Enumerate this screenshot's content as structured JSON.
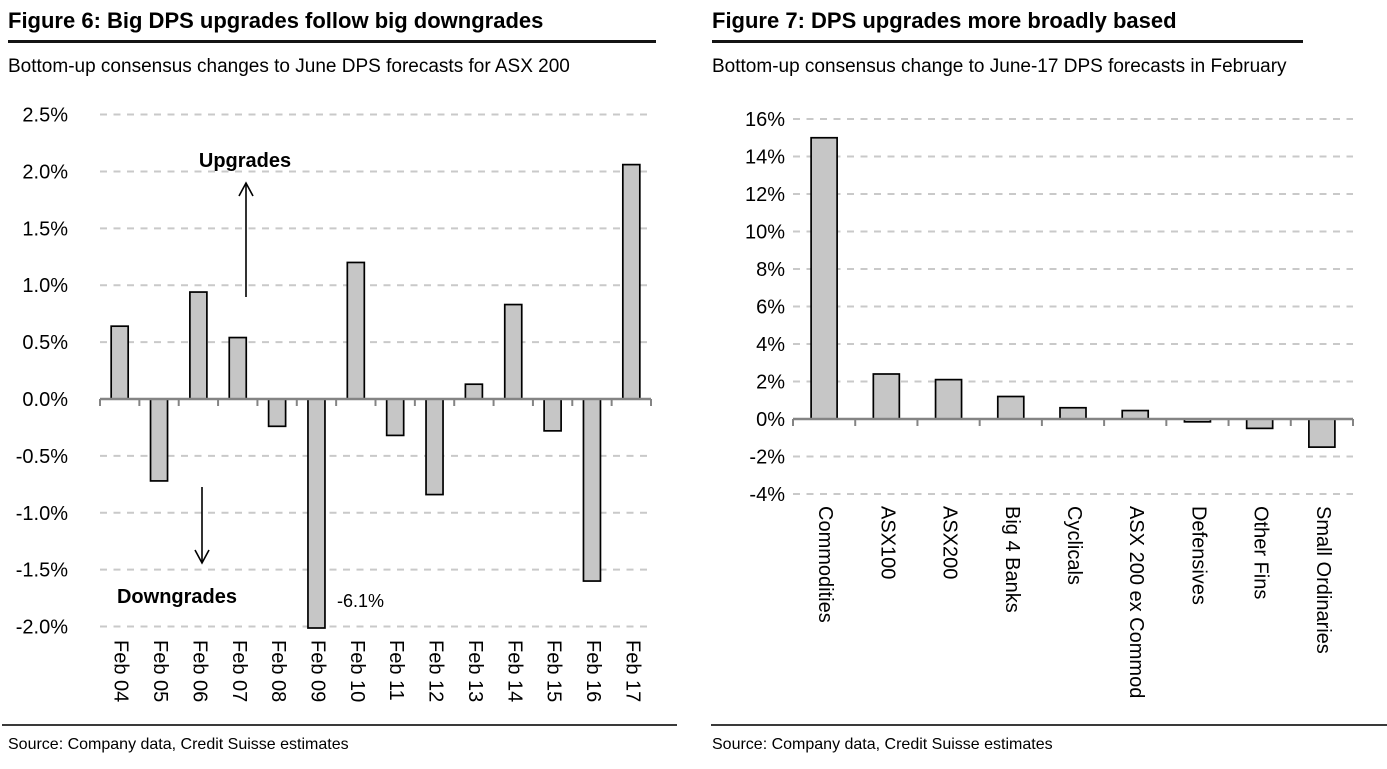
{
  "page": {
    "background": "#ffffff"
  },
  "figures": [
    {
      "title": "Figure 6: Big DPS upgrades follow big downgrades",
      "subtitle": "Bottom-up consensus changes to June DPS forecasts for ASX 200",
      "source": "Source: Company data, Credit Suisse estimates"
    },
    {
      "title": "Figure 7: DPS upgrades more broadly based",
      "subtitle": "Bottom-up consensus change to June-17 DPS forecasts in February",
      "source": "Source: Company data, Credit Suisse estimates"
    }
  ],
  "chart_data": [
    {
      "type": "bar",
      "title": "Figure 6: Big DPS upgrades follow big downgrades",
      "subtitle": "Bottom-up consensus changes to June DPS forecasts for ASX 200",
      "categories": [
        "Feb 04",
        "Feb 05",
        "Feb 06",
        "Feb 07",
        "Feb 08",
        "Feb 09",
        "Feb 10",
        "Feb 11",
        "Feb 12",
        "Feb 13",
        "Feb 14",
        "Feb 15",
        "Feb 16",
        "Feb 17"
      ],
      "values": [
        0.64,
        -0.72,
        0.94,
        0.54,
        -0.24,
        -6.1,
        1.2,
        -0.32,
        -0.84,
        0.13,
        0.83,
        -0.28,
        -1.6,
        2.06
      ],
      "unit": "%",
      "xlabel": "",
      "ylabel": "",
      "ylim": [
        -2.0,
        2.5
      ],
      "grid": "dashed-horizontal",
      "legend": "none",
      "yticks": [
        {
          "value": 2.5,
          "label": "2.5%"
        },
        {
          "value": 2.0,
          "label": "2.0%"
        },
        {
          "value": 1.5,
          "label": "1.5%"
        },
        {
          "value": 1.0,
          "label": "1.0%"
        },
        {
          "value": 0.5,
          "label": "0.5%"
        },
        {
          "value": 0.0,
          "label": "0.0%"
        },
        {
          "value": -0.5,
          "label": "-0.5%"
        },
        {
          "value": -1.0,
          "label": "-1.0%"
        },
        {
          "value": -1.5,
          "label": "-1.5%"
        },
        {
          "value": -2.0,
          "label": "-2.0%"
        }
      ],
      "annotations": [
        {
          "id": "upgrades",
          "text": "Upgrades"
        },
        {
          "id": "downgrades",
          "text": "Downgrades"
        },
        {
          "id": "feb09-value",
          "text": "-6.1%",
          "refers_to": "Feb 09"
        }
      ],
      "clipped_note": "Feb 09 bar is clipped at the -2.0% axis limit; actual value -6.1%",
      "colors": {
        "bar_fill": "#c6c6c6",
        "bar_stroke": "#000000",
        "axis": "#848484",
        "grid": "#c9c9c9"
      }
    },
    {
      "type": "bar",
      "title": "Figure 7: DPS upgrades more broadly based",
      "subtitle": "Bottom-up consensus change to June-17 DPS forecasts in February",
      "categories": [
        "Commodities",
        "ASX100",
        "ASX200",
        "Big 4 Banks",
        "Cyclicals",
        "ASX 200 ex Commod",
        "Defensives",
        "Other Fins",
        "Small Ordinaries"
      ],
      "values": [
        15.0,
        2.4,
        2.1,
        1.2,
        0.6,
        0.45,
        -0.15,
        -0.5,
        -1.5
      ],
      "unit": "%",
      "xlabel": "",
      "ylabel": "",
      "ylim": [
        -4,
        16
      ],
      "grid": "dashed-horizontal",
      "legend": "none",
      "yticks": [
        {
          "value": 16,
          "label": "16%"
        },
        {
          "value": 14,
          "label": "14%"
        },
        {
          "value": 12,
          "label": "12%"
        },
        {
          "value": 10,
          "label": "10%"
        },
        {
          "value": 8,
          "label": "8%"
        },
        {
          "value": 6,
          "label": "6%"
        },
        {
          "value": 4,
          "label": "4%"
        },
        {
          "value": 2,
          "label": "2%"
        },
        {
          "value": 0,
          "label": "0%"
        },
        {
          "value": -2,
          "label": "-2%"
        },
        {
          "value": -4,
          "label": "-4%"
        }
      ],
      "annotations": [],
      "colors": {
        "bar_fill": "#c6c6c6",
        "bar_stroke": "#000000",
        "axis": "#848484",
        "grid": "#c9c9c9"
      }
    }
  ]
}
